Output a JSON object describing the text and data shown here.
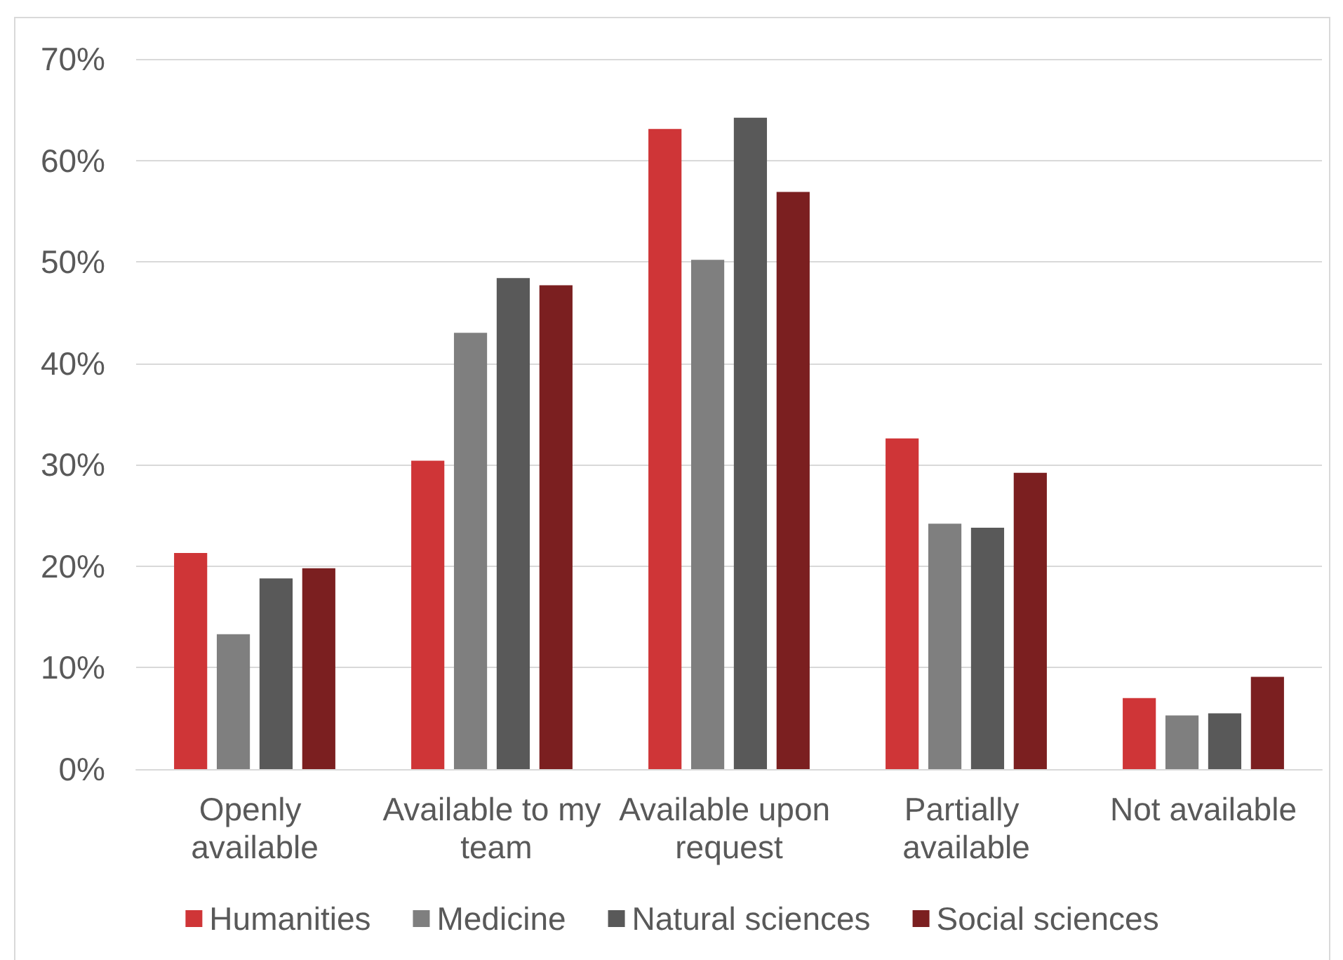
{
  "chart_data": {
    "type": "bar",
    "categories": [
      "Openly available",
      "Available to my team",
      "Available upon request",
      "Partially available",
      "Not available"
    ],
    "series": [
      {
        "name": "Humanities",
        "color": "#cf3537",
        "values": [
          21.3,
          30.4,
          63.1,
          32.6,
          7.0
        ]
      },
      {
        "name": "Medicine",
        "color": "#7f7f7f",
        "values": [
          13.3,
          43.0,
          50.2,
          24.2,
          5.3
        ]
      },
      {
        "name": "Natural sciences",
        "color": "#595959",
        "values": [
          18.8,
          48.4,
          64.2,
          23.8,
          5.5
        ]
      },
      {
        "name": "Social sciences",
        "color": "#7b1f20",
        "values": [
          19.8,
          47.7,
          56.9,
          29.2,
          9.1
        ]
      }
    ],
    "ylim": [
      0,
      70
    ],
    "yticks": [
      {
        "value": 0,
        "label": "0%"
      },
      {
        "value": 10,
        "label": "10%"
      },
      {
        "value": 20,
        "label": "20%"
      },
      {
        "value": 30,
        "label": "30%"
      },
      {
        "value": 40,
        "label": "40%"
      },
      {
        "value": 50,
        "label": "50%"
      },
      {
        "value": 60,
        "label": "60%"
      },
      {
        "value": 70,
        "label": "70%"
      }
    ],
    "grid": "y",
    "legend": "bottom"
  }
}
